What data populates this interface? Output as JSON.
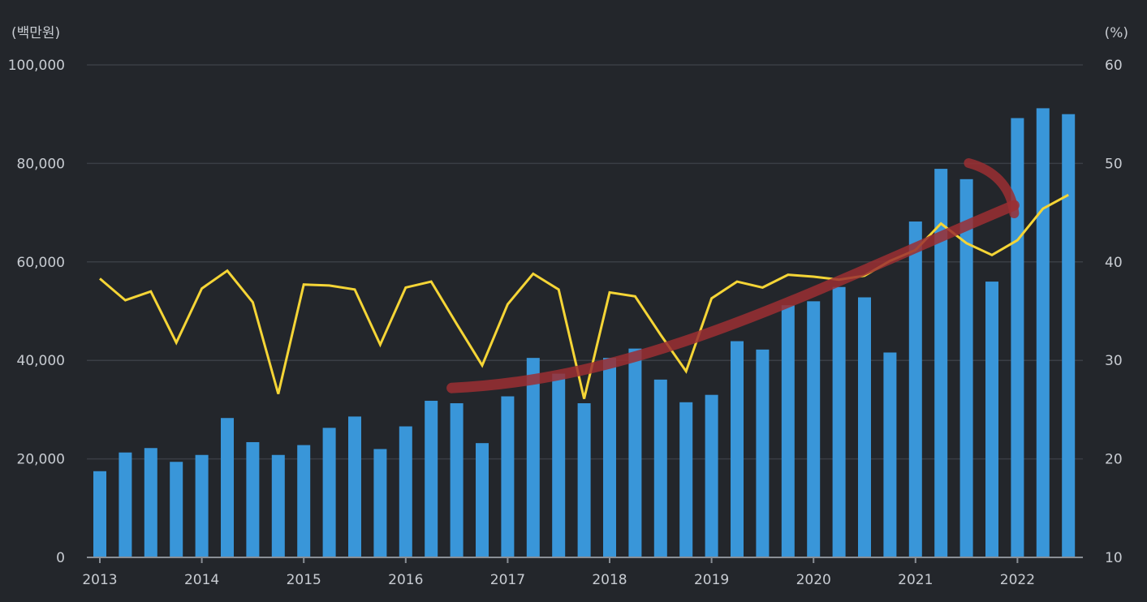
{
  "chart_data": {
    "type": "bar",
    "y_unit_left": "(백만원)",
    "y_unit_right": "(%)",
    "ylim_left": [
      0,
      100000
    ],
    "ylim_right": [
      10,
      60
    ],
    "yticks_left": [
      "100,000",
      "80,000",
      "60,000",
      "40,000",
      "20,000",
      "0"
    ],
    "yticks_left_values": [
      100000,
      80000,
      60000,
      40000,
      20000,
      0
    ],
    "yticks_right": [
      "60",
      "50",
      "40",
      "30",
      "20",
      "10"
    ],
    "yticks_right_values": [
      60,
      50,
      40,
      30,
      20,
      10
    ],
    "xticks": [
      "2013",
      "2014",
      "2015",
      "2016",
      "2017",
      "2018",
      "2019",
      "2020",
      "2021",
      "2022"
    ],
    "grid": true,
    "legend": "none",
    "colors": {
      "background": "#23262b",
      "bars": "#3996d9",
      "line": "#f5d536",
      "grid": "#3a3e45",
      "axis": "#8a8f96",
      "annotation": "#9b2f33"
    },
    "categories": [
      "2013Q1",
      "2013Q2",
      "2013Q3",
      "2013Q4",
      "2014Q1",
      "2014Q2",
      "2014Q3",
      "2014Q4",
      "2015Q1",
      "2015Q2",
      "2015Q3",
      "2015Q4",
      "2016Q1",
      "2016Q2",
      "2016Q3",
      "2016Q4",
      "2017Q1",
      "2017Q2",
      "2017Q3",
      "2017Q4",
      "2018Q1",
      "2018Q2",
      "2018Q3",
      "2018Q4",
      "2019Q1",
      "2019Q2",
      "2019Q3",
      "2019Q4",
      "2020Q1",
      "2020Q2",
      "2020Q3",
      "2020Q4",
      "2021Q1",
      "2021Q2",
      "2021Q3",
      "2021Q4",
      "2022Q1",
      "2022Q2",
      "2022Q3"
    ],
    "series": [
      {
        "type": "bar",
        "axis": "left",
        "values": [
          17500,
          21300,
          22200,
          19400,
          20800,
          28300,
          23400,
          20800,
          22800,
          26300,
          28600,
          22000,
          26600,
          31800,
          31300,
          23200,
          32700,
          40500,
          37300,
          31300,
          40500,
          42400,
          36100,
          31500,
          33000,
          43900,
          42200,
          51200,
          52000,
          54900,
          52800,
          41600,
          68200,
          78900,
          76800,
          56000,
          89200,
          91200,
          90000
        ]
      },
      {
        "type": "line",
        "axis": "right",
        "values": [
          38.3,
          36.1,
          37.0,
          31.8,
          37.3,
          39.1,
          35.9,
          26.6,
          37.7,
          37.6,
          37.2,
          31.6,
          37.4,
          38.0,
          33.7,
          29.5,
          35.7,
          38.8,
          37.2,
          26.1,
          36.9,
          36.5,
          32.6,
          28.9,
          36.3,
          38.0,
          37.4,
          38.7,
          38.5,
          38.2,
          38.6,
          40.1,
          41.2,
          43.9,
          41.9,
          40.7,
          42.2,
          45.4,
          46.8
        ]
      }
    ],
    "annotation": {
      "type": "hand-drawn upward trend arrow",
      "from": {
        "x": "2016Q3",
        "y_left": 34400
      },
      "to": {
        "x": "2022Q1",
        "y_left": 71500
      }
    }
  }
}
